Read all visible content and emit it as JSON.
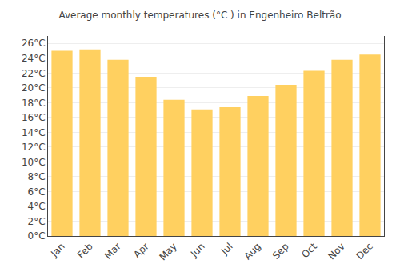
{
  "chart_data": {
    "type": "bar",
    "title": "Average monthly temperatures (°C ) in Engenheiro Beltrão",
    "categories": [
      "Jan",
      "Feb",
      "Mar",
      "Apr",
      "May",
      "Jun",
      "Jul",
      "Aug",
      "Sep",
      "Oct",
      "Nov",
      "Dec"
    ],
    "values": [
      25.0,
      25.2,
      23.8,
      21.5,
      18.4,
      17.1,
      17.4,
      18.9,
      20.4,
      22.3,
      23.8,
      24.5
    ],
    "color": "#FFD060",
    "ylim": [
      0,
      27
    ],
    "yticks": [
      {
        "value": 0,
        "label": "0°C"
      },
      {
        "value": 2,
        "label": "2°C"
      },
      {
        "value": 4,
        "label": "4°C"
      },
      {
        "value": 6,
        "label": "6°C"
      },
      {
        "value": 8,
        "label": "8°C"
      },
      {
        "value": 10,
        "label": "10°C"
      },
      {
        "value": 12,
        "label": "12°C"
      },
      {
        "value": 14,
        "label": "14°C"
      },
      {
        "value": 16,
        "label": "16°C"
      },
      {
        "value": 18,
        "label": "18°C"
      },
      {
        "value": 20,
        "label": "20°C"
      },
      {
        "value": 22,
        "label": "22°C"
      },
      {
        "value": 24,
        "label": "24°C"
      },
      {
        "value": 26,
        "label": "26°C"
      }
    ],
    "grid": true
  }
}
